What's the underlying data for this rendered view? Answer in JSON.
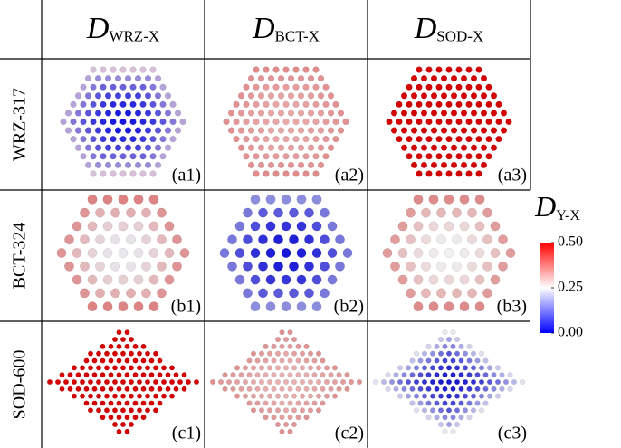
{
  "columns": [
    {
      "symbol": "D",
      "subscript": "WRZ-X"
    },
    {
      "symbol": "D",
      "subscript": "BCT-X"
    },
    {
      "symbol": "D",
      "subscript": "SOD-X"
    }
  ],
  "rows": [
    {
      "label": "WRZ-317",
      "panels": [
        "(a1)",
        "(a2)",
        "(a3)"
      ]
    },
    {
      "label": "BCT-324",
      "panels": [
        "(b1)",
        "(b2)",
        "(b3)"
      ]
    },
    {
      "label": "SOD-600",
      "panels": [
        "(c1)",
        "(c2)",
        "(c3)"
      ]
    }
  ],
  "colorbar": {
    "symbol": "D",
    "subscript": "Y-X",
    "ylim": [
      0,
      0.5
    ],
    "yticks": [
      {
        "value": 0,
        "label": "0.00"
      },
      {
        "value": 0.25,
        "label": "0.25"
      },
      {
        "value": 0.5,
        "label": "0.50"
      }
    ],
    "colors": [
      "#0000ff",
      "#ffffff",
      "#ff0000"
    ]
  }
}
